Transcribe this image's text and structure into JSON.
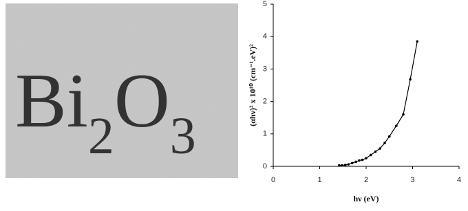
{
  "photo": {
    "text": [
      "Bi",
      "2",
      "O",
      "3"
    ]
  },
  "chart_data": {
    "type": "line",
    "x_label": "hν (eV)",
    "y_label": "(αhν)² x 10¹⁰ (cm⁻¹.eV)²",
    "x": [
      1.42,
      1.48,
      1.55,
      1.62,
      1.7,
      1.78,
      1.85,
      1.92,
      2.0,
      2.1,
      2.2,
      2.3,
      2.4,
      2.5,
      2.65,
      2.8,
      2.95,
      3.1
    ],
    "series": [
      {
        "color": "#000000",
        "values": [
          0.03,
          0.03,
          0.04,
          0.06,
          0.1,
          0.14,
          0.18,
          0.2,
          0.25,
          0.35,
          0.45,
          0.55,
          0.72,
          0.92,
          1.25,
          1.6,
          2.68,
          3.85
        ]
      }
    ],
    "xlim": [
      0,
      4
    ],
    "xticks": [
      0,
      1,
      2,
      3,
      4
    ],
    "ylim": [
      0,
      5
    ],
    "yticks": [
      0,
      1,
      2,
      3,
      4,
      5
    ]
  }
}
